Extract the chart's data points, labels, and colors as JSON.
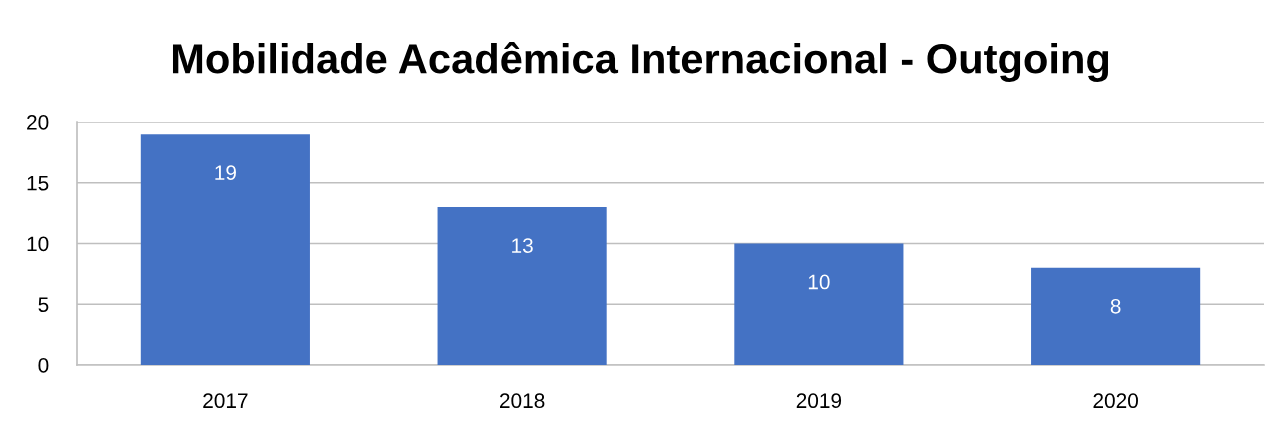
{
  "chart_data": {
    "type": "bar",
    "title": "Mobilidade Acadêmica Internacional - Outgoing",
    "categories": [
      "2017",
      "2018",
      "2019",
      "2020"
    ],
    "values": [
      19,
      13,
      10,
      8
    ],
    "color": "#4472c4",
    "ylim": [
      0,
      20
    ],
    "yticks": [
      0,
      5,
      10,
      15,
      20
    ],
    "grid": "y",
    "data_labels": true
  }
}
